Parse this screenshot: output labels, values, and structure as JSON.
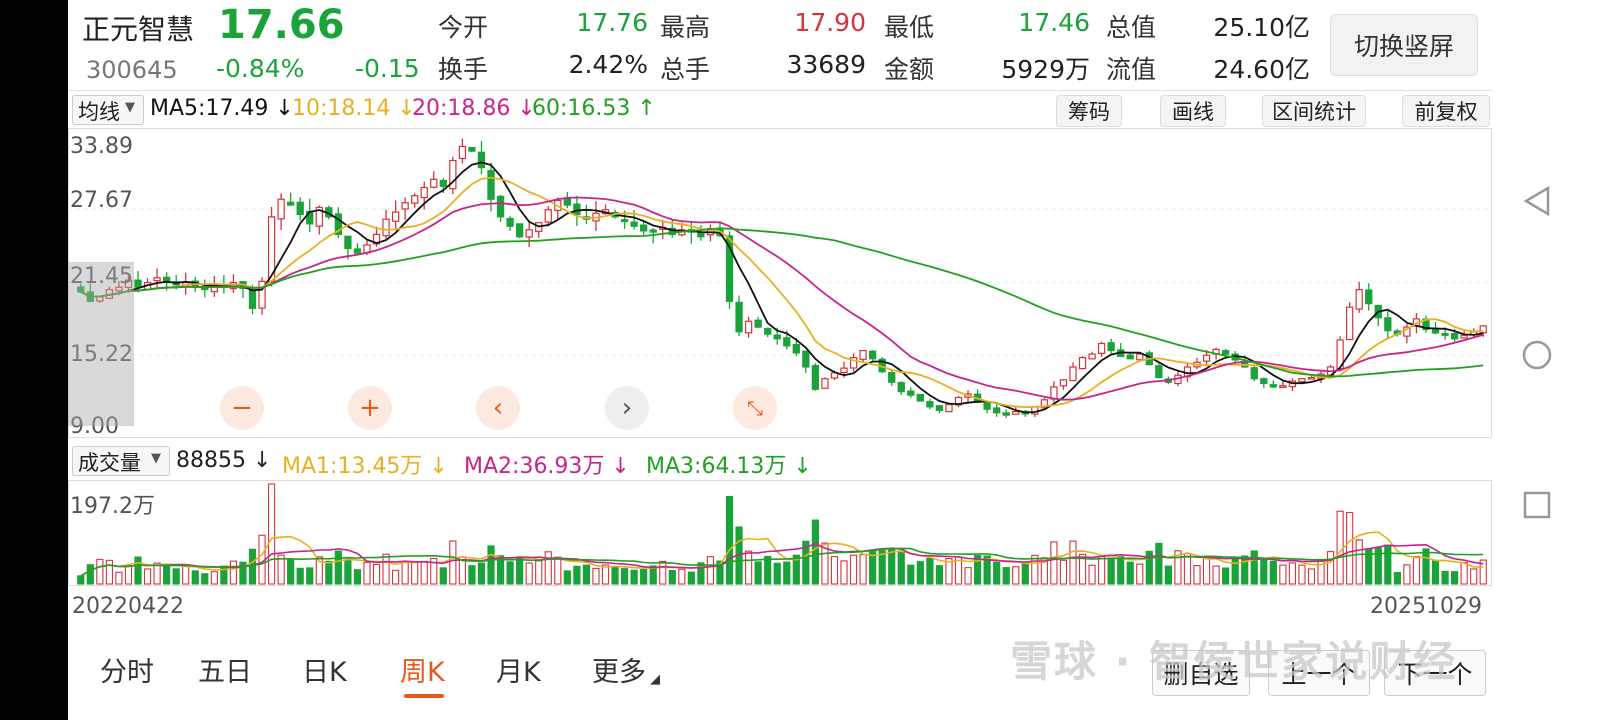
{
  "quote": {
    "name": "正元智慧",
    "price": "17.66",
    "code": "300645",
    "change_pct": "-0.84%",
    "change": "-0.15",
    "stats": [
      {
        "label": "今开",
        "value": "17.76",
        "color": "green"
      },
      {
        "label": "最高",
        "value": "17.90",
        "color": "red"
      },
      {
        "label": "最低",
        "value": "17.46",
        "color": "green"
      },
      {
        "label": "总值",
        "value": "25.10亿",
        "color": "dark"
      },
      {
        "label": "换手",
        "value": "2.42%",
        "color": "dark"
      },
      {
        "label": "总手",
        "value": "33689",
        "color": "dark"
      },
      {
        "label": "金额",
        "value": "5929万",
        "color": "dark"
      },
      {
        "label": "流值",
        "value": "24.60亿",
        "color": "dark"
      }
    ],
    "switch_label": "切换竖屏"
  },
  "ma_legend": {
    "selector": "均线",
    "ma5": "MA5:17.49",
    "ma10": "10:18.14",
    "ma20": "20:18.86",
    "ma60": "60:16.53"
  },
  "tools": [
    "筹码",
    "画线",
    "区间统计",
    "前复权"
  ],
  "price_axis": [
    "33.89",
    "27.67",
    "21.45",
    "15.22",
    "9.00"
  ],
  "volume": {
    "selector": "成交量",
    "current": "88855",
    "ma1": "MA1:13.45万",
    "ma2": "MA2:36.93万",
    "ma3": "MA3:64.13万",
    "axis_max": "197.2万"
  },
  "date_start": "20220422",
  "date_end": "20251029",
  "tabs": [
    "分时",
    "五日",
    "日K",
    "周K",
    "月K",
    "更多"
  ],
  "active_tab": "周K",
  "bottom_buttons": [
    "删自选",
    "上一个",
    "下一个"
  ],
  "watermark": "雪球 · 智侯世家说财经",
  "colors": {
    "up": "#d4343a",
    "down": "#1aa33a",
    "ma5": "#111111",
    "ma10": "#e8b020",
    "ma20": "#c8248c",
    "ma60": "#22a022",
    "accent": "#e85a1c"
  },
  "chart_data": {
    "type": "candlestick",
    "ylim": [
      9.0,
      33.89
    ],
    "closes": [
      20.6,
      19.8,
      20.2,
      20.8,
      21.0,
      21.6,
      21.0,
      21.4,
      21.8,
      21.5,
      21.2,
      21.4,
      21.0,
      20.8,
      21.2,
      21.0,
      21.4,
      20.9,
      19.2,
      21.5,
      27.0,
      28.5,
      28.0,
      27.2,
      26.4,
      27.8,
      27.0,
      25.5,
      24.3,
      23.9,
      24.6,
      25.5,
      26.8,
      27.4,
      28.2,
      28.8,
      29.5,
      30.2,
      29.6,
      31.8,
      33.0,
      32.6,
      31.2,
      28.5,
      27.0,
      26.2,
      25.3,
      25.9,
      26.5,
      27.6,
      28.4,
      28.0,
      27.2,
      26.8,
      27.3,
      27.6,
      27.0,
      26.6,
      26.2,
      25.8,
      25.7,
      26.1,
      25.5,
      25.9,
      25.7,
      25.3,
      26.0,
      25.4,
      19.8,
      17.2,
      18.1,
      17.6,
      17.0,
      16.6,
      16.0,
      15.4,
      14.2,
      12.3,
      13.2,
      13.7,
      14.1,
      15.0,
      15.6,
      14.9,
      13.8,
      12.9,
      12.1,
      11.8,
      11.3,
      10.8,
      10.5,
      11.0,
      11.6,
      11.9,
      11.2,
      10.6,
      10.3,
      10.1,
      10.4,
      10.2,
      10.8,
      11.4,
      12.5,
      13.1,
      14.2,
      15.0,
      15.3,
      16.2,
      15.6,
      15.1,
      14.9,
      15.3,
      14.4,
      13.3,
      12.9,
      13.5,
      14.2,
      14.6,
      15.2,
      15.7,
      15.3,
      14.8,
      14.2,
      13.2,
      12.8,
      12.5,
      12.6,
      13.0,
      13.2,
      13.3,
      13.6,
      14.2,
      16.5,
      19.3,
      20.8,
      19.6,
      18.4,
      17.3,
      17.0,
      17.6,
      18.3,
      17.4,
      17.1,
      16.9,
      16.6,
      16.9,
      17.2,
      17.7
    ]
  }
}
